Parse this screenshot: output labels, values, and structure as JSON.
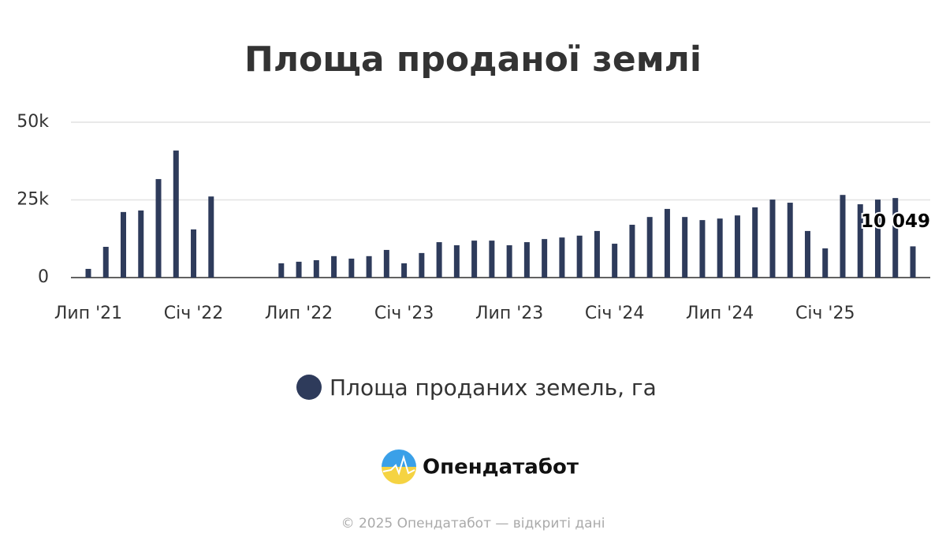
{
  "chart_data": {
    "type": "bar",
    "title": "Площа проданої землі",
    "categories": [
      "Лип '21",
      null,
      null,
      null,
      null,
      null,
      "Січ '22",
      null,
      null,
      null,
      null,
      null,
      "Лип '22",
      null,
      null,
      null,
      null,
      null,
      "Січ '23",
      null,
      null,
      null,
      null,
      null,
      "Лип '23",
      null,
      null,
      null,
      null,
      null,
      "Січ '24",
      null,
      null,
      null,
      null,
      null,
      "Лип '24",
      null,
      null,
      null,
      null,
      null,
      "Січ '25",
      null,
      null,
      null,
      null,
      null
    ],
    "series": [
      {
        "name": "Площа проданих земель, га",
        "color": "#2e3b5b",
        "values": [
          2800,
          9900,
          21100,
          21600,
          31700,
          40900,
          15500,
          26100,
          null,
          null,
          null,
          4600,
          5100,
          5600,
          6900,
          6100,
          6900,
          8900,
          4600,
          7900,
          11400,
          10400,
          11900,
          11900,
          10400,
          11400,
          12400,
          12900,
          13500,
          15000,
          10900,
          17000,
          19500,
          22100,
          19500,
          18500,
          19000,
          20000,
          22600,
          25100,
          24100,
          15000,
          9400,
          26600,
          23600,
          25100,
          25600,
          10049
        ],
        "value_labels": [
          null,
          null,
          null,
          null,
          null,
          null,
          null,
          null,
          null,
          null,
          null,
          null,
          null,
          null,
          null,
          null,
          null,
          null,
          null,
          null,
          null,
          null,
          null,
          null,
          null,
          null,
          null,
          null,
          null,
          null,
          null,
          null,
          null,
          null,
          null,
          null,
          null,
          null,
          null,
          null,
          null,
          null,
          null,
          null,
          null,
          null,
          null,
          "10 049"
        ]
      }
    ],
    "ylim": [
      0,
      50000
    ],
    "yticks": [
      0,
      {
        "value": 25000,
        "label": "25k"
      },
      {
        "value": 50000,
        "label": "50k"
      }
    ],
    "grid": true,
    "legend": "bottom"
  },
  "logo": "Опендатабот",
  "footer": "© 2025 Опендатабот — відкриті дані"
}
